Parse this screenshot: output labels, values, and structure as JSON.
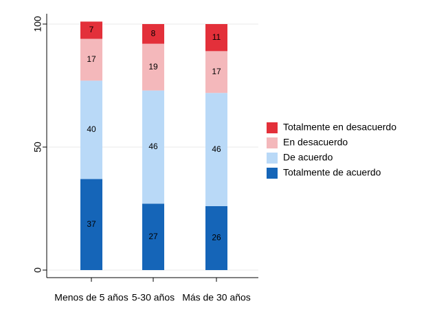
{
  "chart_data": {
    "type": "stacked_bar",
    "categories": [
      "Menos de 5 años",
      "5-30 años",
      "Más de 30 años"
    ],
    "series": [
      {
        "name": "Totalmente de acuerdo",
        "color": "#1565b8",
        "values": [
          37,
          27,
          26
        ]
      },
      {
        "name": "De acuerdo",
        "color": "#b9d9f7",
        "values": [
          40,
          46,
          46
        ]
      },
      {
        "name": "En desacuerdo",
        "color": "#f4b8bb",
        "values": [
          17,
          19,
          17
        ]
      },
      {
        "name": "Totalmente en desacuerdo",
        "color": "#e3303a",
        "values": [
          7,
          8,
          11
        ]
      }
    ],
    "ylim": [
      0,
      100
    ],
    "yticks": [
      0,
      50,
      100
    ],
    "grid": true
  }
}
